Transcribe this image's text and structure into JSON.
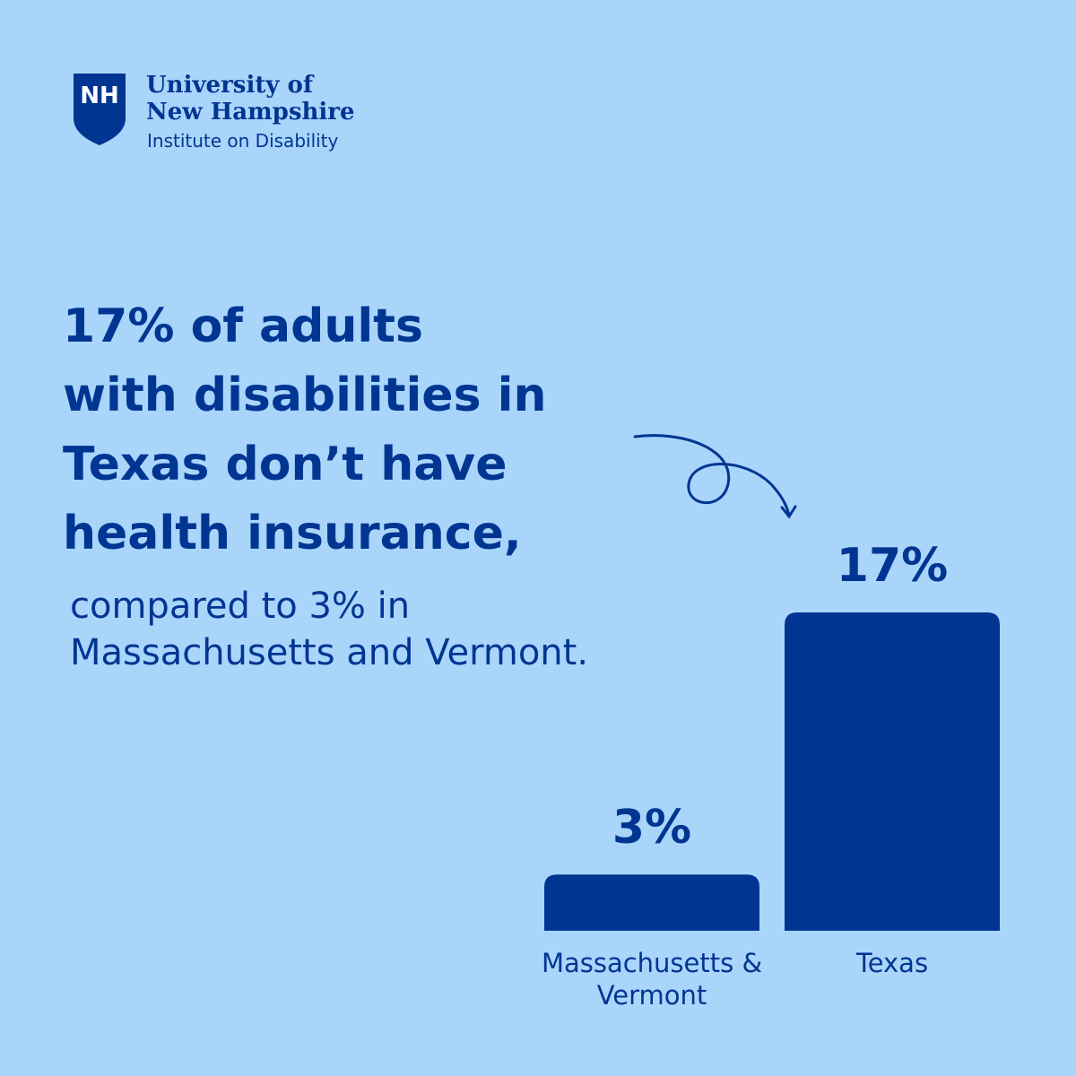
{
  "logo": {
    "mark": "NH",
    "line1": "University of",
    "line2": "New Hampshire",
    "unit": "Institute on Disability"
  },
  "headline_lines": [
    "17% of adults",
    "with disabilities in",
    "Texas don’t have",
    "health insurance,"
  ],
  "subheadline_lines": [
    "compared to 3% in",
    "Massachusetts and Vermont."
  ],
  "chart_data": {
    "type": "bar",
    "categories": [
      "Massachusetts & Vermont",
      "Texas"
    ],
    "values": [
      3,
      17
    ],
    "value_labels": [
      "3%",
      "17%"
    ],
    "color": "#003591"
  }
}
